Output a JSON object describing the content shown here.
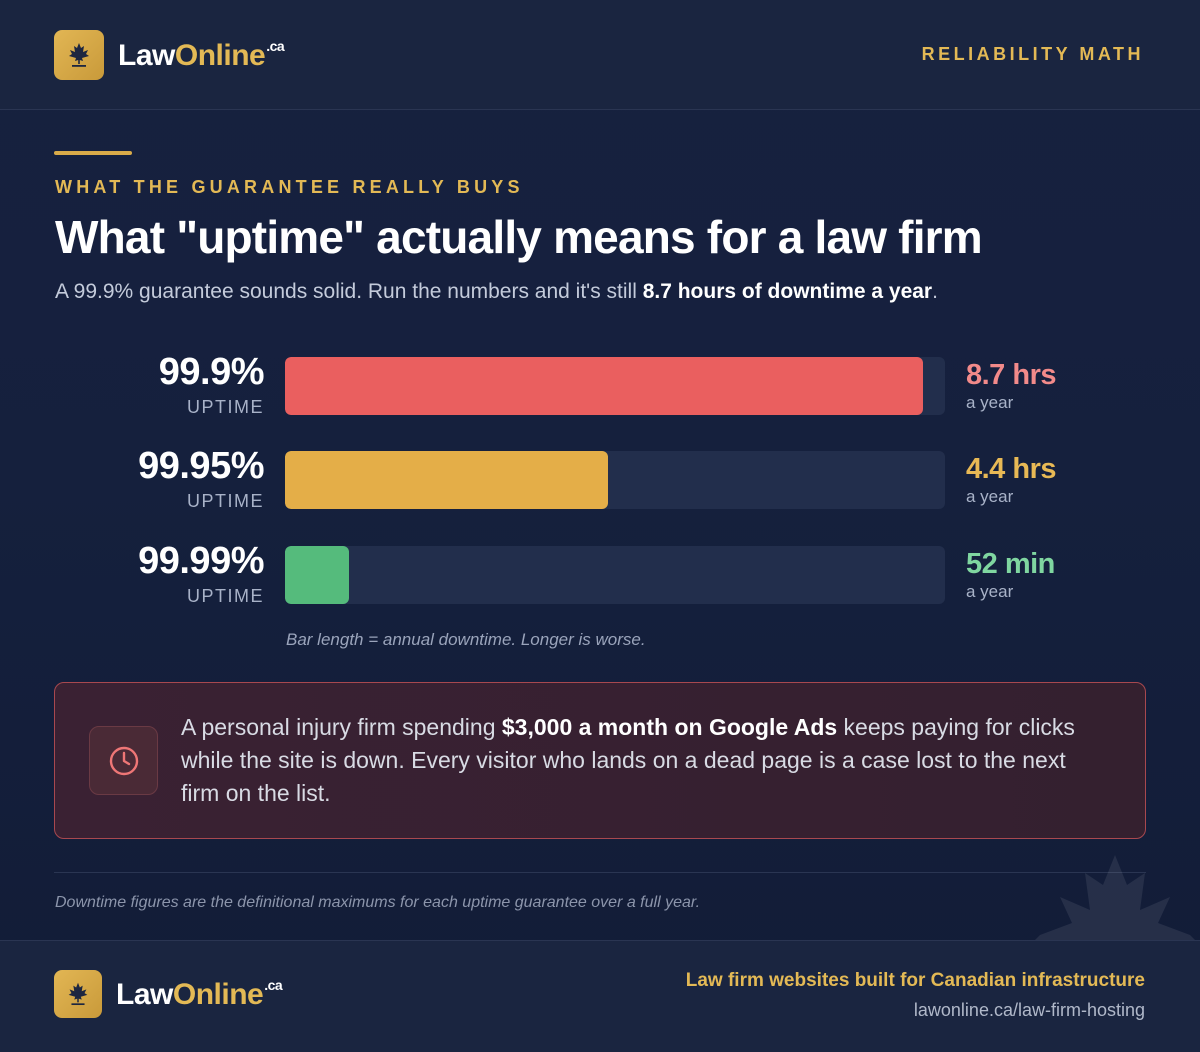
{
  "brand": {
    "name_part1": "Law",
    "name_part2": "Online",
    "tld": ".ca"
  },
  "header": {
    "tag": "RELIABILITY MATH"
  },
  "hero": {
    "eyebrow": "WHAT THE GUARANTEE REALLY BUYS",
    "title": "What \"uptime\" actually means for a law firm",
    "subtitle_before": "A 99.9% guarantee sounds solid. Run the numbers and it's still ",
    "subtitle_bold": "8.7 hours of downtime a year",
    "subtitle_after": "."
  },
  "chart_data": {
    "type": "bar",
    "orientation": "horizontal",
    "categories": [
      "99.9%",
      "99.95%",
      "99.99%"
    ],
    "category_sublabel": "UPTIME",
    "values": [
      8.7,
      4.4,
      0.87
    ],
    "value_unit": "hours of annual downtime",
    "value_labels": [
      "8.7 hrs",
      "4.4 hrs",
      "52 min"
    ],
    "value_sublabel": "a year",
    "xlim": [
      0,
      9
    ],
    "colors": [
      "#ea5f5f",
      "#e4ae48",
      "#55bb7c"
    ],
    "label_colors": [
      "#f28a8a",
      "#e8b955",
      "#7fd6a0"
    ],
    "caption": "Bar length = annual downtime. Longer is worse."
  },
  "callout": {
    "icon": "clock-icon",
    "text_before": "A personal injury firm spending ",
    "text_bold": "$3,000 a month on Google Ads",
    "text_after": " keeps paying for clicks while the site is down. Every visitor who lands on a dead page is a case lost to the next firm on the list."
  },
  "footnote": "Downtime figures are the definitional maximums for each uptime guarantee over a full year.",
  "footer": {
    "tag": "Law firm websites built for Canadian infrastructure",
    "url": "lawonline.ca/law-firm-hosting"
  }
}
